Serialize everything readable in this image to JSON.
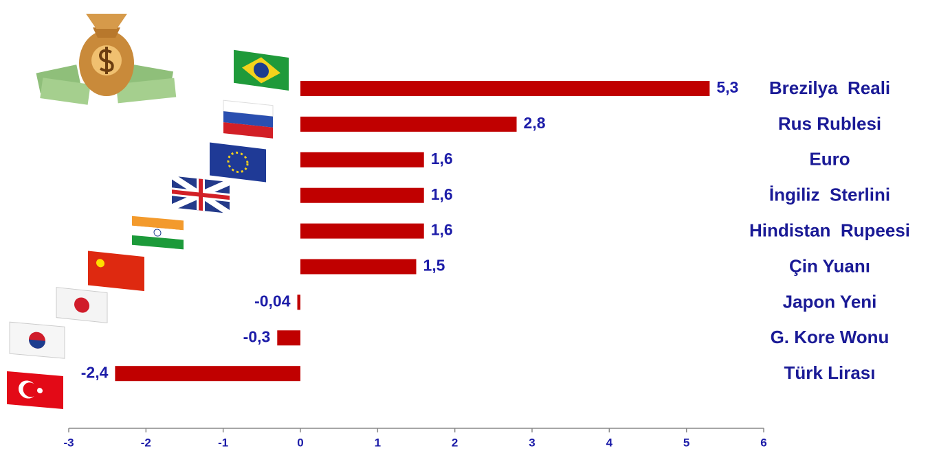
{
  "chart_data": {
    "type": "bar",
    "orientation": "horizontal",
    "categories": [
      "Brezilya  Reali",
      "Rus Rublesi",
      "Euro",
      "İngiliz  Sterlini",
      "Hindistan  Rupeesi",
      "Çin Yuanı",
      "Japon Yeni",
      "G. Kore Wonu",
      "Türk Lirası"
    ],
    "values": [
      5.3,
      2.8,
      1.6,
      1.6,
      1.6,
      1.5,
      -0.04,
      -0.3,
      -2.4
    ],
    "value_labels": [
      "5,3",
      "2,8",
      "1,6",
      "1,6",
      "1,6",
      "1,5",
      "-0,04",
      "-0,3",
      "-2,4"
    ],
    "color": "#c00000",
    "xlim": [
      -3,
      6
    ],
    "xticks": [
      -3,
      -2,
      -1,
      0,
      1,
      2,
      3,
      4,
      5,
      6
    ]
  }
}
